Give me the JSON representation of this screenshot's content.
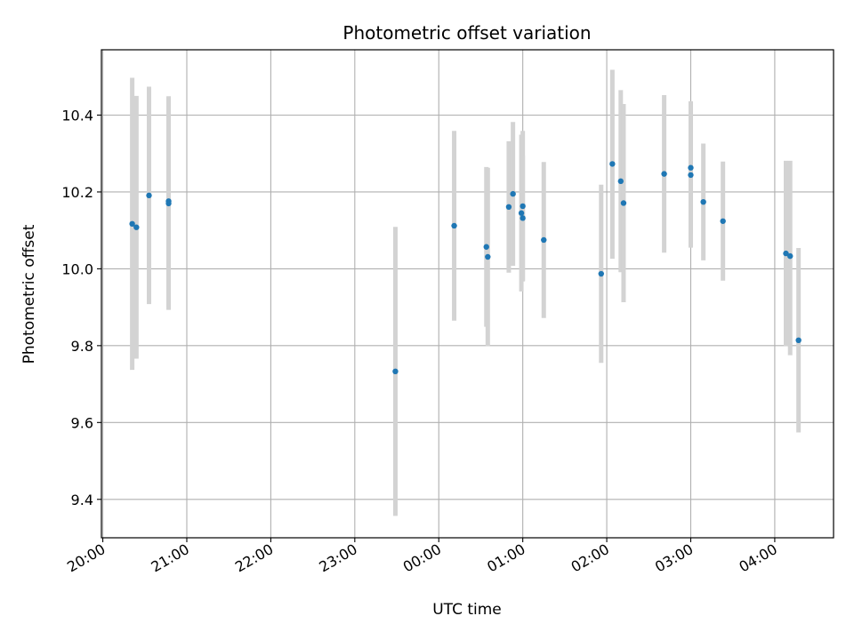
{
  "chart_data": {
    "type": "scatter",
    "title": "Photometric offset variation",
    "xlabel": "UTC time",
    "ylabel": "Photometric offset",
    "x_tick_labels": [
      "20:00",
      "21:00",
      "22:00",
      "23:00",
      "00:00",
      "01:00",
      "02:00",
      "03:00",
      "04:00"
    ],
    "y_tick_labels": [
      "9.4",
      "9.6",
      "9.8",
      "10.0",
      "10.2",
      "10.4"
    ],
    "y_ticks": [
      9.4,
      9.6,
      9.8,
      10.0,
      10.2,
      10.4
    ],
    "xlim": [
      "19:59",
      "04:42"
    ],
    "ylim": [
      9.3,
      10.57
    ],
    "grid": true,
    "point_color": "#1f77b4",
    "errorbar_color": "#d3d3d3",
    "points": [
      {
        "time": "20:21",
        "y": 10.117,
        "lower": 9.737,
        "upper": 10.497
      },
      {
        "time": "20:24",
        "y": 10.108,
        "lower": 9.766,
        "upper": 10.45
      },
      {
        "time": "20:33",
        "y": 10.191,
        "lower": 9.908,
        "upper": 10.474
      },
      {
        "time": "20:47",
        "y": 10.176,
        "lower": 9.901,
        "upper": 10.449
      },
      {
        "time": "20:47",
        "y": 10.17,
        "lower": 9.893,
        "upper": 10.447
      },
      {
        "time": "23:29",
        "y": 9.733,
        "lower": 9.357,
        "upper": 10.109
      },
      {
        "time": "00:11",
        "y": 10.112,
        "lower": 9.865,
        "upper": 10.359
      },
      {
        "time": "00:34",
        "y": 10.057,
        "lower": 9.849,
        "upper": 10.265
      },
      {
        "time": "00:35",
        "y": 10.031,
        "lower": 9.799,
        "upper": 10.263
      },
      {
        "time": "00:50",
        "y": 10.161,
        "lower": 9.99,
        "upper": 10.332
      },
      {
        "time": "00:53",
        "y": 10.195,
        "lower": 10.008,
        "upper": 10.382
      },
      {
        "time": "00:59",
        "y": 10.145,
        "lower": 9.941,
        "upper": 10.349
      },
      {
        "time": "01:00",
        "y": 10.132,
        "lower": 9.969,
        "upper": 10.295
      },
      {
        "time": "01:00",
        "y": 10.163,
        "lower": 9.967,
        "upper": 10.359
      },
      {
        "time": "01:15",
        "y": 10.075,
        "lower": 9.872,
        "upper": 10.278
      },
      {
        "time": "01:56",
        "y": 9.987,
        "lower": 9.755,
        "upper": 10.219
      },
      {
        "time": "02:04",
        "y": 10.273,
        "lower": 10.026,
        "upper": 10.518
      },
      {
        "time": "02:10",
        "y": 10.228,
        "lower": 9.991,
        "upper": 10.465
      },
      {
        "time": "02:12",
        "y": 10.171,
        "lower": 9.913,
        "upper": 10.429
      },
      {
        "time": "02:41",
        "y": 10.247,
        "lower": 10.042,
        "upper": 10.452
      },
      {
        "time": "03:00",
        "y": 10.263,
        "lower": 10.09,
        "upper": 10.436
      },
      {
        "time": "03:00",
        "y": 10.244,
        "lower": 10.055,
        "upper": 10.433
      },
      {
        "time": "03:09",
        "y": 10.174,
        "lower": 10.022,
        "upper": 10.326
      },
      {
        "time": "03:23",
        "y": 10.124,
        "lower": 9.969,
        "upper": 10.279
      },
      {
        "time": "04:08",
        "y": 10.04,
        "lower": 9.799,
        "upper": 10.281
      },
      {
        "time": "04:11",
        "y": 10.033,
        "lower": 9.775,
        "upper": 10.281
      },
      {
        "time": "04:17",
        "y": 9.814,
        "lower": 9.574,
        "upper": 10.054
      }
    ]
  }
}
